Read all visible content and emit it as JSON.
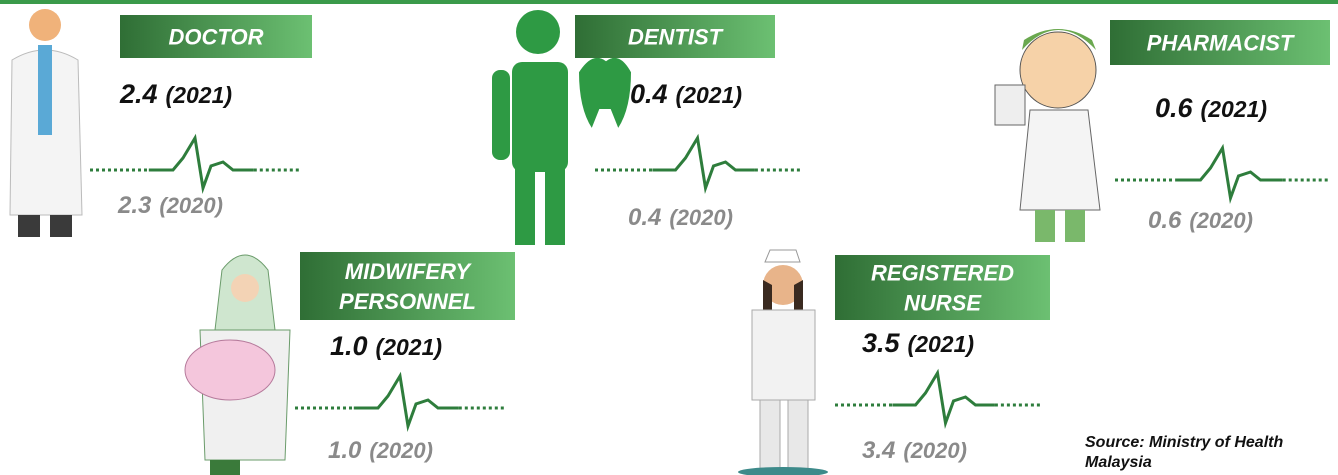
{
  "cards": [
    {
      "label": [
        "DOCTOR"
      ],
      "current": {
        "value": "2.4",
        "year": "(2021)"
      },
      "previous": {
        "value": "2.3",
        "year": "(2020)"
      }
    },
    {
      "label": [
        "DENTIST"
      ],
      "current": {
        "value": "0.4",
        "year": "(2021)"
      },
      "previous": {
        "value": "0.4",
        "year": "(2020)"
      }
    },
    {
      "label": [
        "PHARMACIST"
      ],
      "current": {
        "value": "0.6",
        "year": "(2021)"
      },
      "previous": {
        "value": "0.6",
        "year": "(2020)"
      }
    },
    {
      "label": [
        "MIDWIFERY",
        "PERSONNEL"
      ],
      "current": {
        "value": "1.0",
        "year": "(2021)"
      },
      "previous": {
        "value": "1.0",
        "year": "(2020)"
      }
    },
    {
      "label": [
        "REGISTERED",
        "NURSE"
      ],
      "current": {
        "value": "3.5",
        "year": "(2021)"
      },
      "previous": {
        "value": "3.4",
        "year": "(2020)"
      }
    }
  ],
  "source": [
    "Source: Ministry of Health",
    "Malaysia"
  ]
}
